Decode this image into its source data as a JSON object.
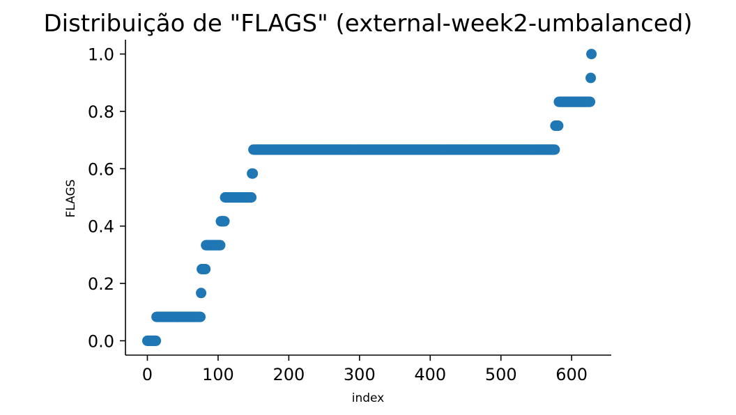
{
  "chart_data": {
    "type": "scatter",
    "title": "Distribuição de \"FLAGS\" (external-week2-umbalanced)",
    "xlabel": "index",
    "ylabel": "FLAGS",
    "xlim": [
      -31,
      656
    ],
    "ylim": [
      -0.05,
      1.05
    ],
    "xticks": [
      0,
      100,
      200,
      300,
      400,
      500,
      600
    ],
    "xtick_labels": [
      "0",
      "100",
      "200",
      "300",
      "400",
      "500",
      "600"
    ],
    "yticks": [
      0.0,
      0.2,
      0.4,
      0.6,
      0.8,
      1.0
    ],
    "ytick_labels": [
      "0.0",
      "0.2",
      "0.4",
      "0.6",
      "0.8",
      "1.0"
    ],
    "grid": false,
    "legend": "none",
    "marker_color": "#1f77b4",
    "series": [
      {
        "segments": [
          {
            "x_start": 0,
            "x_end": 12,
            "y": 0.0
          },
          {
            "x_start": 13,
            "x_end": 75,
            "y": 0.0833
          },
          {
            "x_start": 76,
            "x_end": 76,
            "y": 0.1667
          },
          {
            "x_start": 77,
            "x_end": 82,
            "y": 0.25
          },
          {
            "x_start": 83,
            "x_end": 103,
            "y": 0.3333
          },
          {
            "x_start": 104,
            "x_end": 109,
            "y": 0.4167
          },
          {
            "x_start": 110,
            "x_end": 147,
            "y": 0.5
          },
          {
            "x_start": 148,
            "x_end": 149,
            "y": 0.5833
          },
          {
            "x_start": 150,
            "x_end": 576,
            "y": 0.6667
          },
          {
            "x_start": 577,
            "x_end": 581,
            "y": 0.75
          },
          {
            "x_start": 582,
            "x_end": 626,
            "y": 0.8333
          },
          {
            "x_start": 627,
            "x_end": 627,
            "y": 0.9167
          },
          {
            "x_start": 628,
            "x_end": 628,
            "y": 1.0
          }
        ]
      }
    ]
  }
}
